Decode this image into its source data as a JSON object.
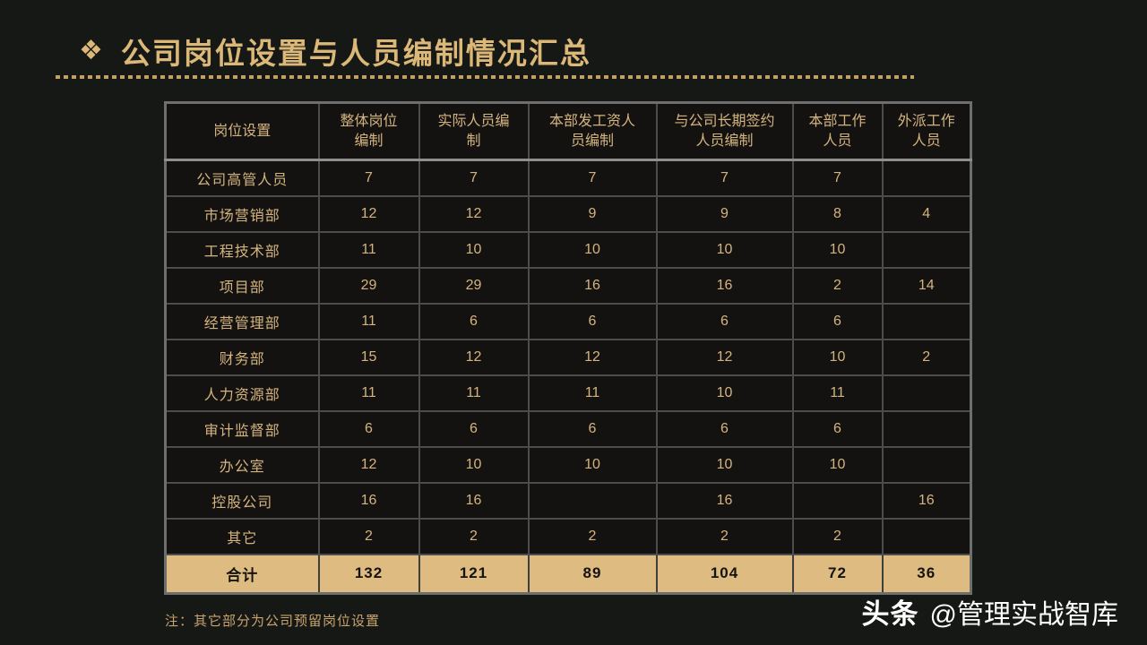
{
  "slide": {
    "title_icon": "❖",
    "title": "公司岗位设置与人员编制情况汇总",
    "note": "注：其它部分为公司预留岗位设置",
    "watermark": {
      "brand": "头条",
      "handle": "@管理实战智库"
    }
  },
  "table": {
    "headers": [
      "岗位设置",
      "整体岗位\n编制",
      "实际人员编\n制",
      "本部发工资人\n员编制",
      "与公司长期签约\n人员编制",
      "本部工作\n人员",
      "外派工作\n人员"
    ],
    "rows": [
      {
        "label": "公司高管人员",
        "values": [
          "7",
          "7",
          "7",
          "7",
          "7",
          ""
        ]
      },
      {
        "label": "市场营销部",
        "values": [
          "12",
          "12",
          "9",
          "9",
          "8",
          "4"
        ]
      },
      {
        "label": "工程技术部",
        "values": [
          "11",
          "10",
          "10",
          "10",
          "10",
          ""
        ]
      },
      {
        "label": "项目部",
        "values": [
          "29",
          "29",
          "16",
          "16",
          "2",
          "14"
        ]
      },
      {
        "label": "经营管理部",
        "values": [
          "11",
          "6",
          "6",
          "6",
          "6",
          ""
        ]
      },
      {
        "label": "财务部",
        "values": [
          "15",
          "12",
          "12",
          "12",
          "10",
          "2"
        ]
      },
      {
        "label": "人力资源部",
        "values": [
          "11",
          "11",
          "11",
          "10",
          "11",
          ""
        ]
      },
      {
        "label": "审计监督部",
        "values": [
          "6",
          "6",
          "6",
          "6",
          "6",
          ""
        ]
      },
      {
        "label": "办公室",
        "values": [
          "12",
          "10",
          "10",
          "10",
          "10",
          ""
        ]
      },
      {
        "label": "控股公司",
        "values": [
          "16",
          "16",
          "",
          "16",
          "",
          "16"
        ]
      },
      {
        "label": "其它",
        "values": [
          "2",
          "2",
          "2",
          "2",
          "2",
          ""
        ]
      }
    ],
    "total": {
      "label": "合计",
      "values": [
        "132",
        "121",
        "89",
        "104",
        "72",
        "36"
      ]
    }
  },
  "colors": {
    "background": "#161816",
    "title_gold": "#dcb878",
    "cell_gold": "#d4b47e",
    "dash_gold": "#c3a061",
    "total_row_bg": "#debb80",
    "total_row_text": "#151310",
    "table_border_outer": "#6e6e6e",
    "table_border_inner": "#4c4c4c",
    "watermark_text": "#ffffff"
  }
}
